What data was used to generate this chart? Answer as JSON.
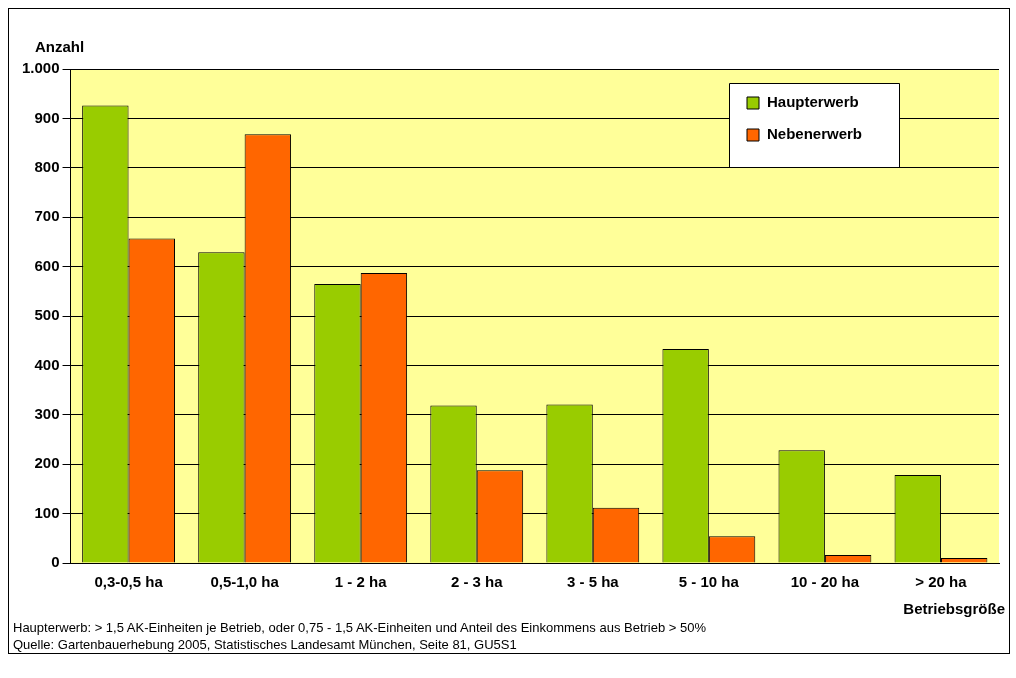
{
  "chart_data": {
    "type": "bar",
    "xlabel": "Betriebsgröße",
    "ylabel": "Anzahl",
    "categories": [
      "0,3-0,5 ha",
      "0,5-1,0 ha",
      "1 - 2 ha",
      "2 - 3 ha",
      "3 - 5 ha",
      "5 - 10 ha",
      "10 - 20 ha",
      "> 20 ha"
    ],
    "series": [
      {
        "name": "Haupterwerb",
        "color": "#99cc00",
        "values": [
          926,
          629,
          565,
          319,
          321,
          433,
          228,
          178
        ]
      },
      {
        "name": "Nebenerwerb",
        "color": "#ff6600",
        "values": [
          657,
          868,
          587,
          188,
          112,
          54,
          16,
          10
        ]
      }
    ],
    "ylim": [
      0,
      1000
    ],
    "yticks": [
      0,
      100,
      200,
      300,
      400,
      500,
      600,
      700,
      800,
      900,
      {
        "value": 1000,
        "label": "1.000"
      }
    ],
    "grid": "y",
    "legend": "top right",
    "annotations": [
      "Haupterwerb: > 1,5 AK-Einheiten je Betrieb, oder 0,75 - 1,5 AK-Einheiten und Anteil des Einkommens aus Betrieb > 50%",
      "Quelle: Gartenbauerhebung 2005, Statistisches Landesamt München, Seite 81, GU5S1"
    ]
  }
}
